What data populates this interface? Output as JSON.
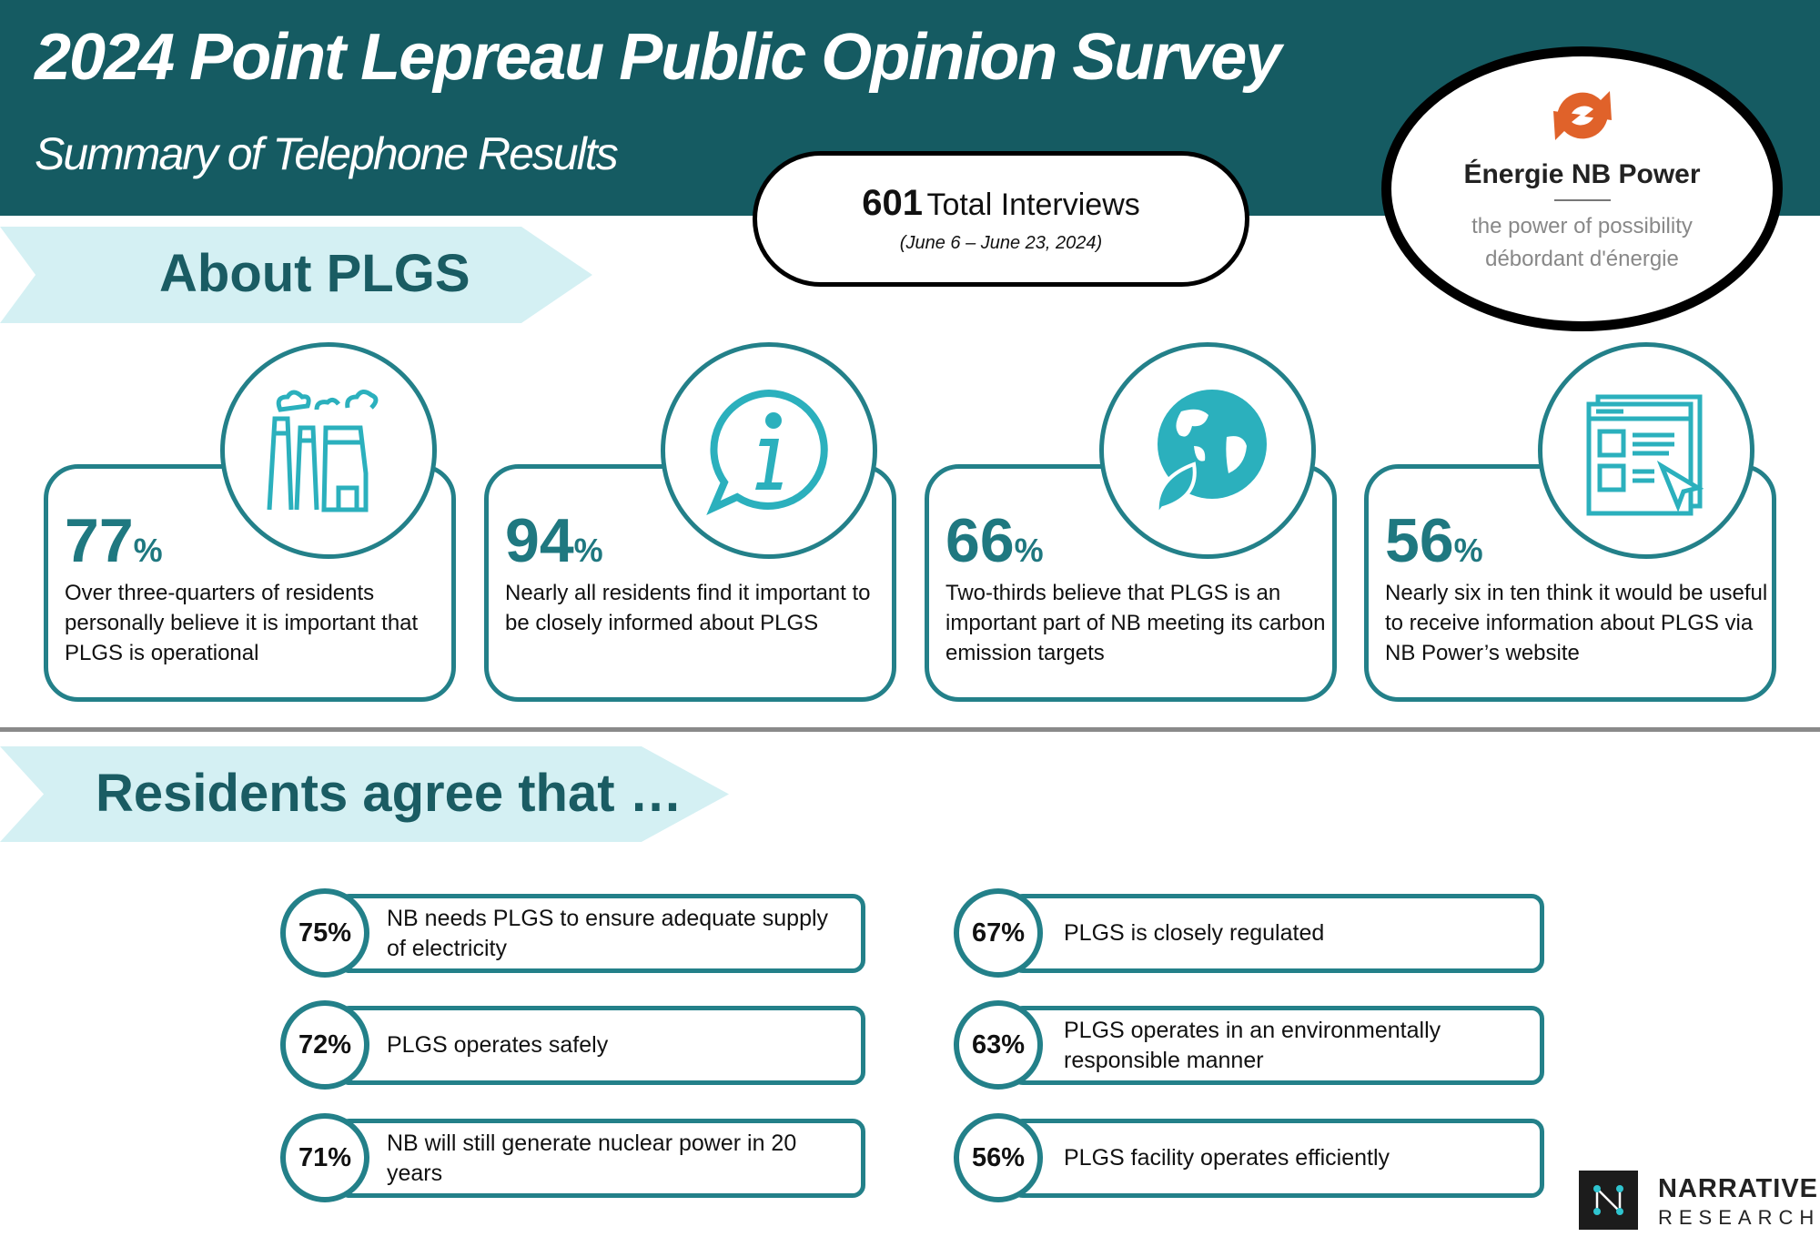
{
  "header": {
    "title": "2024 Point Lepreau Public Opinion Survey",
    "subtitle": "Summary of  Telephone Results",
    "bg_color": "#155b62"
  },
  "interviews": {
    "count": "601",
    "label": "Total Interviews",
    "dates": "(June 6 – June 23, 2024)"
  },
  "logo": {
    "brand": "Énergie NB Power",
    "tagline_en": "the power of possibility",
    "tagline_fr": "débordant d'énergie",
    "icon": "orange-arrows-icon"
  },
  "about": {
    "heading": "About PLGS",
    "cards": [
      {
        "value": "77",
        "unit": "%",
        "text": "Over three-quarters of residents personally believe it is important that PLGS is operational",
        "icon": "power-plant-icon"
      },
      {
        "value": "94",
        "unit": "%",
        "text": "Nearly all residents find it important to be closely informed about PLGS",
        "icon": "info-bubble-icon"
      },
      {
        "value": "66",
        "unit": "%",
        "text": "Two-thirds believe that PLGS is an important part of NB meeting its carbon emission targets",
        "icon": "globe-leaf-icon"
      },
      {
        "value": "56",
        "unit": "%",
        "text": "Nearly six in ten think it would be useful to receive information about PLGS via NB Power’s website",
        "icon": "website-icon"
      }
    ]
  },
  "agree": {
    "heading": "Residents agree that …",
    "items": [
      {
        "pct": "75%",
        "text": "NB needs PLGS to ensure adequate supply of electricity"
      },
      {
        "pct": "72%",
        "text": "PLGS operates safely"
      },
      {
        "pct": "71%",
        "text": "NB will still generate nuclear power in 20 years"
      },
      {
        "pct": "67%",
        "text": "PLGS is closely regulated"
      },
      {
        "pct": "63%",
        "text": "PLGS operates in an environmentally responsible manner"
      },
      {
        "pct": "56%",
        "text": "PLGS facility operates efficiently"
      }
    ]
  },
  "footer": {
    "brand_line1": "NARRATIVE",
    "brand_line2": "RESEARCH"
  },
  "colors": {
    "teal": "#238089",
    "dark_teal": "#155b62",
    "light_cyan": "#d4f0f3",
    "orange": "#e0622a"
  }
}
